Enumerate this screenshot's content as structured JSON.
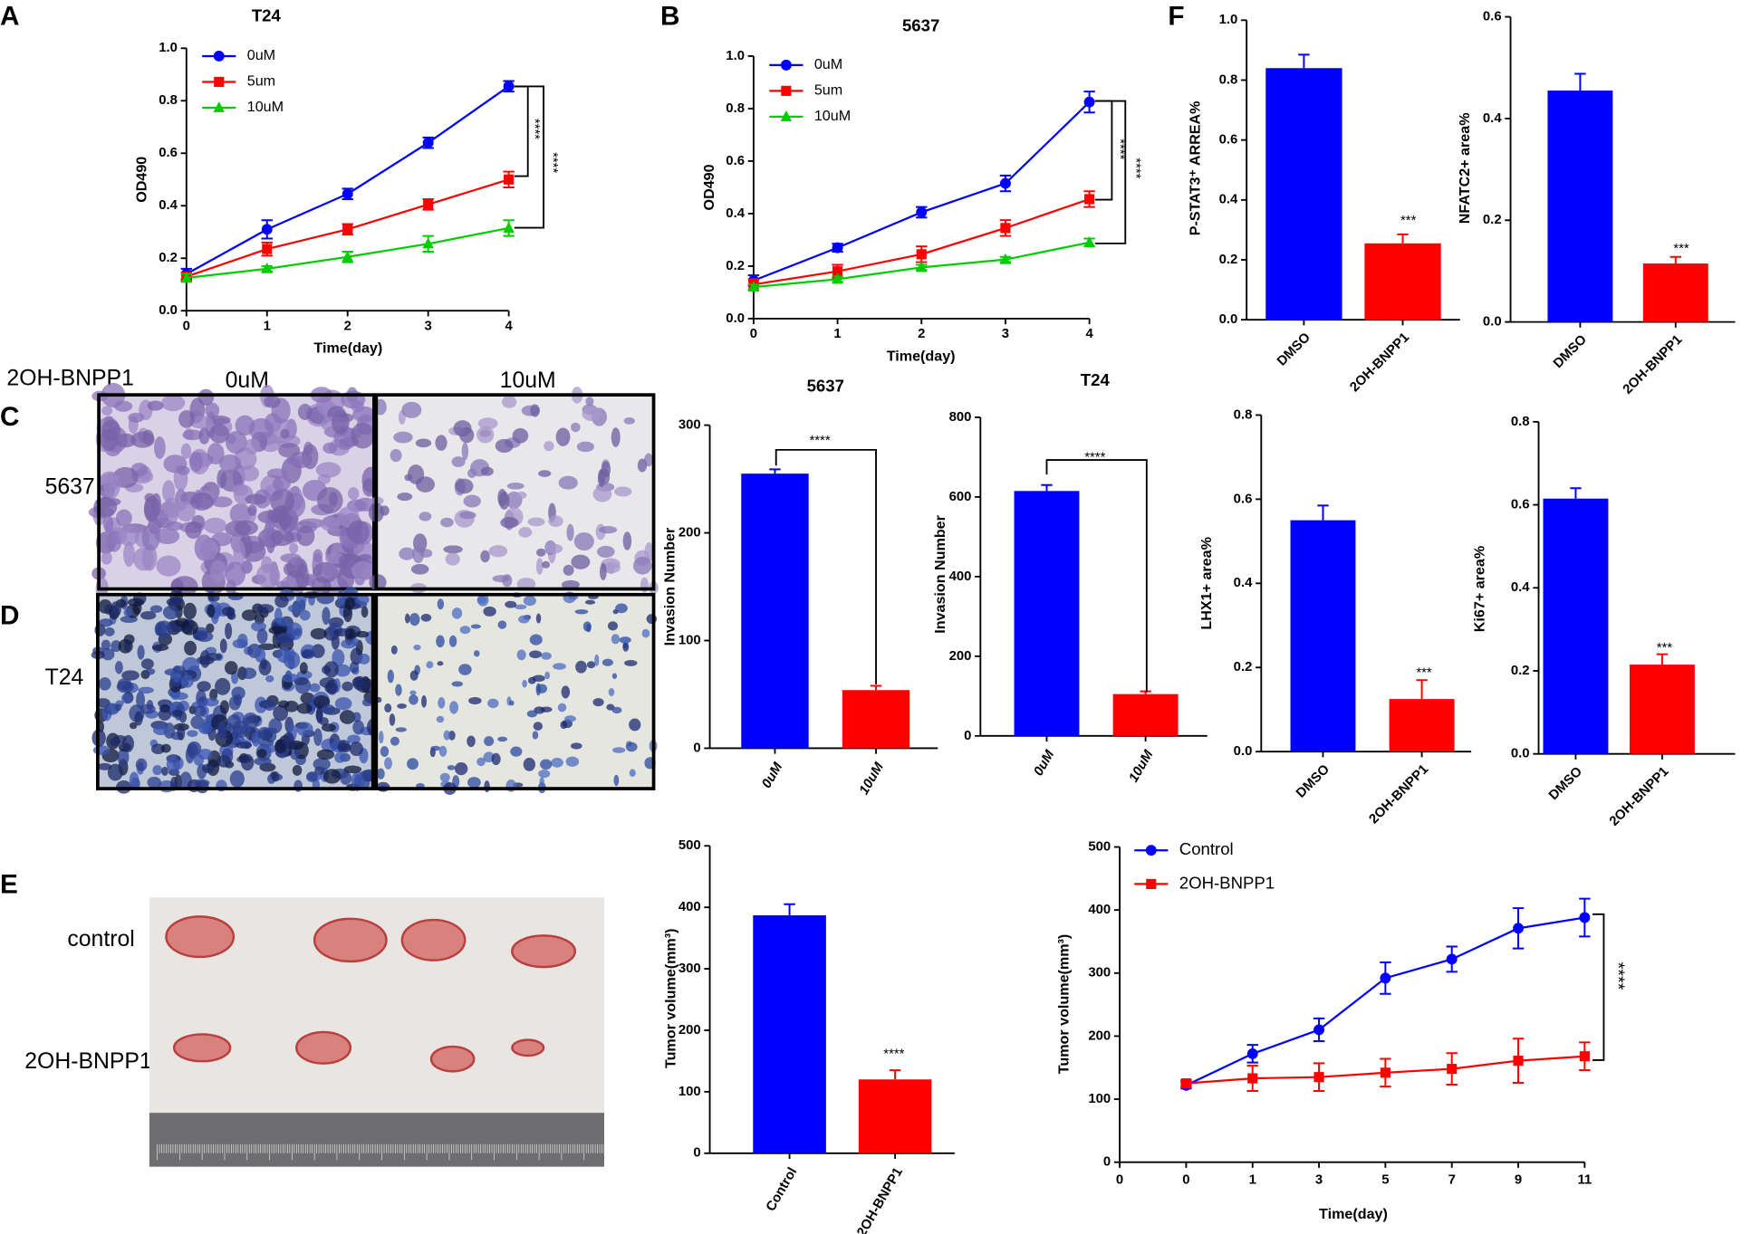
{
  "figure": {
    "panel_labels": [
      "A",
      "B",
      "C",
      "D",
      "E",
      "F"
    ],
    "treatment": "2OH-BNPP1",
    "dose_labels": [
      "0uM",
      "10uM"
    ],
    "cell_lines": [
      "5637",
      "T24"
    ],
    "tumor_groups": [
      "control",
      "2OH-BNPP1"
    ]
  },
  "chart_data": [
    {
      "type": "line",
      "title": "T24",
      "x_label": "Time(day)",
      "y_label": "OD490",
      "x": [
        0,
        1,
        2,
        3,
        4
      ],
      "xlim": [
        0,
        4
      ],
      "xticks": [
        0,
        1,
        2,
        3,
        4
      ],
      "ylim": [
        0,
        1
      ],
      "yticks": [
        {
          "value": 0,
          "label": "0.0"
        },
        0.2,
        0.4,
        0.6,
        0.8,
        {
          "value": 1,
          "label": "1.0"
        }
      ],
      "series": [
        {
          "name": "0uM",
          "color": "#0000ff",
          "marker": "circle",
          "values": [
            0.14,
            0.31,
            0.445,
            0.64,
            0.855
          ],
          "errors": [
            0.02,
            0.035,
            0.02,
            0.02,
            0.02
          ]
        },
        {
          "name": "5um",
          "color": "#ff0000",
          "marker": "square",
          "values": [
            0.13,
            0.235,
            0.31,
            0.405,
            0.5
          ],
          "errors": [
            0.015,
            0.025,
            0.02,
            0.02,
            0.03
          ]
        },
        {
          "name": "10uM",
          "color": "#00cc00",
          "marker": "triangle",
          "values": [
            0.125,
            0.16,
            0.205,
            0.255,
            0.315
          ],
          "errors": [
            0.015,
            0.01,
            0.02,
            0.03,
            0.03
          ]
        }
      ],
      "annotations": [
        "****",
        "****"
      ]
    },
    {
      "type": "line",
      "title": "5637",
      "x_label": "Time(day)",
      "y_label": "OD490",
      "x": [
        0,
        1,
        2,
        3,
        4
      ],
      "xlim": [
        0,
        4
      ],
      "xticks": [
        0,
        1,
        2,
        3,
        4
      ],
      "ylim": [
        0,
        1
      ],
      "yticks": [
        {
          "value": 0,
          "label": "0.0"
        },
        0.2,
        0.4,
        0.6,
        0.8,
        {
          "value": 1,
          "label": "1.0"
        }
      ],
      "series": [
        {
          "name": "0uM",
          "color": "#0000ff",
          "marker": "circle",
          "values": [
            0.145,
            0.27,
            0.405,
            0.515,
            0.825
          ],
          "errors": [
            0.02,
            0.015,
            0.02,
            0.03,
            0.04
          ]
        },
        {
          "name": "5um",
          "color": "#ff0000",
          "marker": "square",
          "values": [
            0.13,
            0.18,
            0.245,
            0.345,
            0.455
          ],
          "errors": [
            0.02,
            0.025,
            0.03,
            0.03,
            0.03
          ]
        },
        {
          "name": "10uM",
          "color": "#00cc00",
          "marker": "triangle",
          "values": [
            0.12,
            0.15,
            0.195,
            0.225,
            0.29
          ],
          "errors": [
            0.01,
            0.01,
            0.01,
            0.01,
            0.015
          ]
        }
      ],
      "annotations": [
        "****",
        "****"
      ]
    },
    {
      "type": "bar",
      "y_label": "P-STAT3⁺ ARREA%",
      "categories": [
        "DMSO",
        "2OH-BNPP1"
      ],
      "values": [
        0.84,
        0.255
      ],
      "errors": [
        0.045,
        0.03
      ],
      "colors": [
        "#0000ff",
        "#ff0000"
      ],
      "ylim": [
        0,
        1
      ],
      "yticks": [
        {
          "value": 0,
          "label": "0.0"
        },
        0.2,
        0.4,
        0.6,
        0.8,
        {
          "value": 1,
          "label": "1.0"
        }
      ],
      "annotations": [
        "***"
      ]
    },
    {
      "type": "bar",
      "y_label": "NFATC2+ area%",
      "categories": [
        "DMSO",
        "2OH-BNPP1"
      ],
      "values": [
        0.455,
        0.115
      ],
      "errors": [
        0.033,
        0.013
      ],
      "colors": [
        "#0000ff",
        "#ff0000"
      ],
      "ylim": [
        0,
        0.6
      ],
      "yticks": [
        {
          "value": 0,
          "label": "0.0"
        },
        0.2,
        0.4,
        0.6
      ],
      "annotations": [
        "***"
      ]
    },
    {
      "type": "bar",
      "y_label": "LHX1+ area%",
      "categories": [
        "DMSO",
        "2OH-BNPP1"
      ],
      "values": [
        0.55,
        0.125
      ],
      "errors": [
        0.035,
        0.045
      ],
      "colors": [
        "#0000ff",
        "#ff0000"
      ],
      "ylim": [
        0,
        0.8
      ],
      "yticks": [
        {
          "value": 0,
          "label": "0.0"
        },
        0.2,
        0.4,
        0.6,
        0.8
      ],
      "annotations": [
        "***"
      ]
    },
    {
      "type": "bar",
      "y_label": "Ki67+ area%",
      "categories": [
        "DMSO",
        "2OH-BNPP1"
      ],
      "values": [
        0.615,
        0.215
      ],
      "errors": [
        0.025,
        0.025
      ],
      "colors": [
        "#0000ff",
        "#ff0000"
      ],
      "ylim": [
        0,
        0.8
      ],
      "yticks": [
        {
          "value": 0,
          "label": "0.0"
        },
        0.2,
        0.4,
        0.6,
        0.8
      ],
      "annotations": [
        "***"
      ]
    },
    {
      "type": "bar",
      "title": "5637",
      "y_label": "Invasion Number",
      "categories": [
        "0uM",
        "10uM"
      ],
      "values": [
        255,
        54
      ],
      "errors": [
        4,
        4
      ],
      "colors": [
        "#0000ff",
        "#ff0000"
      ],
      "ylim": [
        0,
        300
      ],
      "yticks": [
        0,
        100,
        200,
        300
      ],
      "annotations": [
        "****"
      ]
    },
    {
      "type": "bar",
      "title": "T24",
      "y_label": "Invasion Number",
      "categories": [
        "0uM",
        "10uM"
      ],
      "values": [
        615,
        105
      ],
      "errors": [
        15,
        7
      ],
      "colors": [
        "#0000ff",
        "#ff0000"
      ],
      "ylim": [
        0,
        800
      ],
      "yticks": [
        0,
        200,
        400,
        600,
        800
      ],
      "annotations": [
        "****"
      ]
    },
    {
      "type": "bar",
      "y_label": "Tumor volume(mm³)",
      "categories": [
        "Control",
        "2OH-BNPP1"
      ],
      "values": [
        387,
        120
      ],
      "errors": [
        18,
        15
      ],
      "colors": [
        "#0000ff",
        "#ff0000"
      ],
      "ylim": [
        0,
        500
      ],
      "yticks": [
        0,
        100,
        200,
        300,
        400,
        500
      ],
      "annotations": [
        "****"
      ]
    },
    {
      "type": "line",
      "x_label": "Time(day)",
      "y_label": "Tumor volume(mm³)",
      "categories": [
        "0",
        "0",
        "1",
        "3",
        "5",
        "7",
        "9",
        "11"
      ],
      "ylim": [
        0,
        500
      ],
      "yticks": [
        0,
        100,
        200,
        300,
        400,
        500
      ],
      "series": [
        {
          "name": "Control",
          "color": "#0000ff",
          "marker": "circle",
          "values": [
            null,
            122,
            172,
            210,
            292,
            322,
            371,
            388
          ],
          "errors": [
            null,
            5,
            14,
            18,
            25,
            20,
            32,
            30
          ]
        },
        {
          "name": "2OH-BNPP1",
          "color": "#ff0000",
          "marker": "square",
          "values": [
            null,
            125,
            133,
            135,
            142,
            148,
            161,
            168
          ],
          "errors": [
            null,
            5,
            20,
            22,
            22,
            25,
            35,
            22
          ]
        }
      ],
      "annotations": [
        "****"
      ]
    }
  ]
}
